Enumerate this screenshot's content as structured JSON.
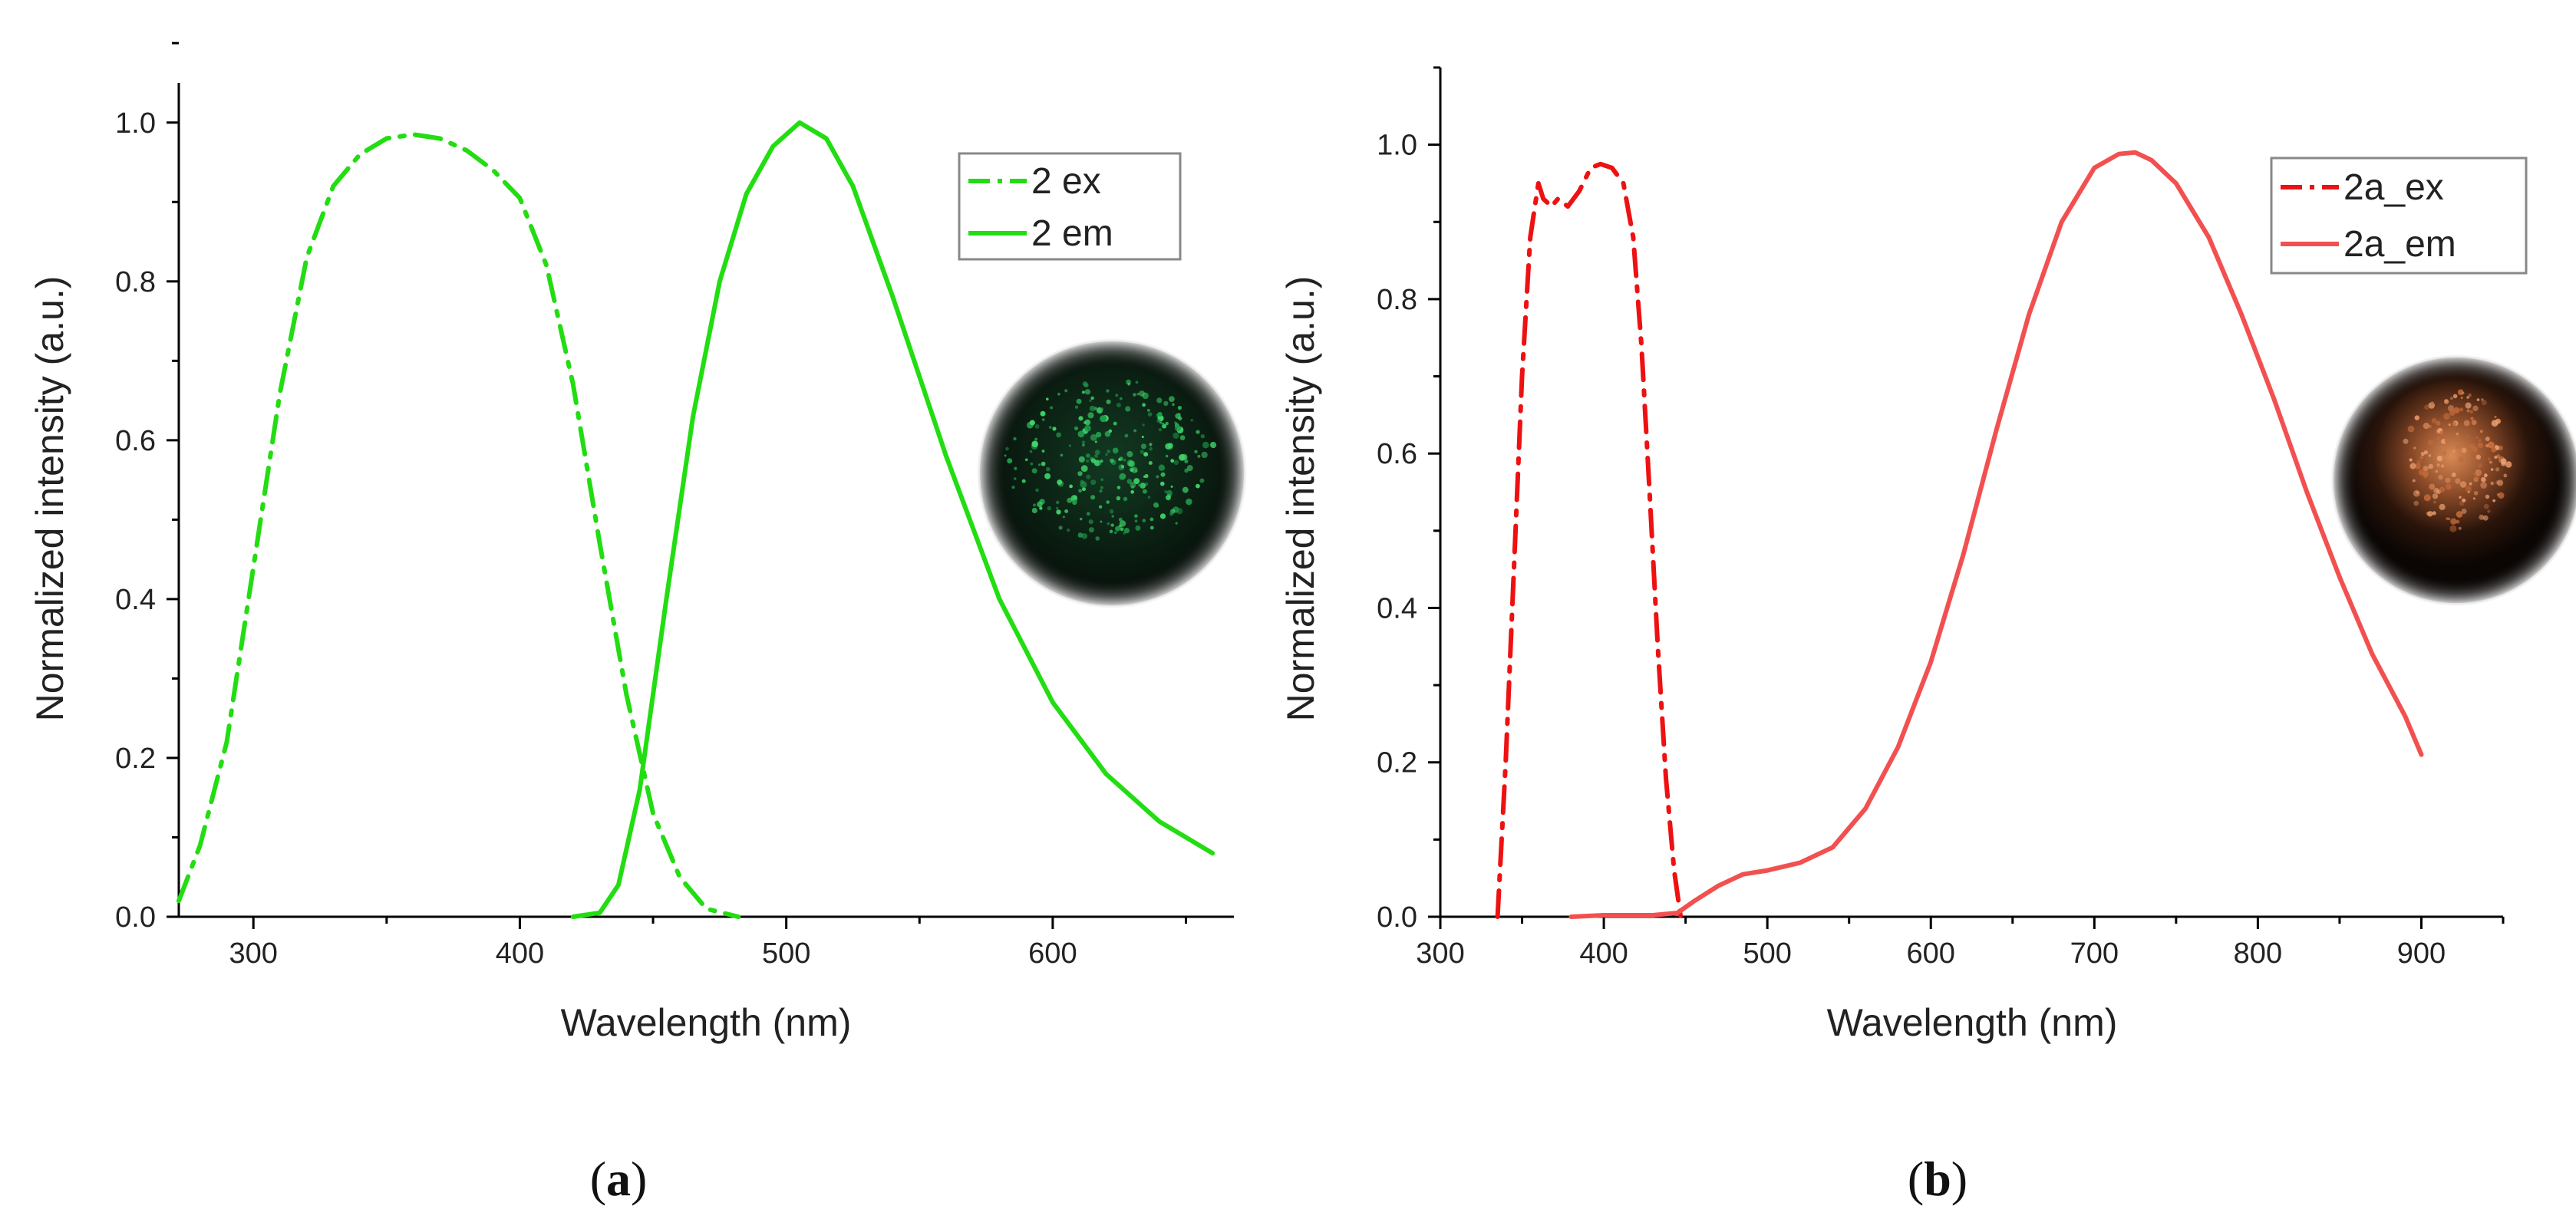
{
  "colors": {
    "green": "#22dd11",
    "red": "#ee1111",
    "red_em": "#f25050"
  },
  "chart_data": [
    {
      "panel": "a",
      "panel_label_open": "(",
      "panel_label_letter": "a",
      "panel_label_close": ")",
      "type": "line",
      "xlabel": "Wavelength (nm)",
      "ylabel": "Normalized intensity (a.u.)",
      "xlim": [
        272,
        668
      ],
      "ylim": [
        0,
        1.05
      ],
      "xticks": [
        300,
        400,
        500,
        600
      ],
      "yticks": [
        0.0,
        0.2,
        0.4,
        0.6,
        0.8,
        1.0
      ],
      "ytick_labels": [
        "0.0",
        "0.2",
        "0.4",
        "0.6",
        "0.8",
        "1.0"
      ],
      "inset_icon": "green-luminescent-sample-photo",
      "series": [
        {
          "name": "2 ex",
          "style": "dashdot",
          "color": "#22dd11",
          "x": [
            272,
            280,
            290,
            300,
            310,
            320,
            330,
            340,
            350,
            360,
            370,
            380,
            390,
            400,
            410,
            420,
            430,
            440,
            450,
            460,
            470,
            482
          ],
          "y": [
            0.02,
            0.09,
            0.22,
            0.44,
            0.66,
            0.83,
            0.92,
            0.96,
            0.98,
            0.985,
            0.98,
            0.965,
            0.94,
            0.905,
            0.82,
            0.67,
            0.47,
            0.28,
            0.13,
            0.05,
            0.01,
            0.0
          ]
        },
        {
          "name": "2 em",
          "style": "solid",
          "color": "#22dd11",
          "x": [
            420,
            430,
            437,
            445,
            455,
            465,
            475,
            485,
            495,
            505,
            515,
            525,
            540,
            560,
            580,
            600,
            620,
            640,
            660
          ],
          "y": [
            0.0,
            0.005,
            0.04,
            0.16,
            0.4,
            0.63,
            0.8,
            0.91,
            0.97,
            1.0,
            0.98,
            0.92,
            0.78,
            0.58,
            0.4,
            0.27,
            0.18,
            0.12,
            0.08
          ]
        }
      ]
    },
    {
      "panel": "b",
      "panel_label_open": "(",
      "panel_label_letter": "b",
      "panel_label_close": ")",
      "type": "line",
      "xlabel": "Wavelength (nm)",
      "ylabel": "Normalized intensity (a.u.)",
      "xlim": [
        300,
        950
      ],
      "ylim": [
        0,
        1.1
      ],
      "xticks": [
        300,
        400,
        500,
        600,
        700,
        800,
        900
      ],
      "yticks": [
        0.0,
        0.2,
        0.4,
        0.6,
        0.8,
        1.0
      ],
      "ytick_labels": [
        "0.0",
        "0.2",
        "0.4",
        "0.6",
        "0.8",
        "1.0"
      ],
      "inset_icon": "orange-luminescent-sample-photo",
      "series": [
        {
          "name": "2a_ex",
          "style": "dashdot",
          "color": "#ee1111",
          "x": [
            335,
            340,
            345,
            350,
            355,
            360,
            363,
            368,
            372,
            378,
            385,
            392,
            398,
            405,
            412,
            418,
            423,
            428,
            433,
            438,
            443,
            447
          ],
          "y": [
            0.0,
            0.2,
            0.45,
            0.7,
            0.88,
            0.95,
            0.93,
            0.92,
            0.93,
            0.92,
            0.94,
            0.97,
            0.975,
            0.97,
            0.95,
            0.88,
            0.74,
            0.55,
            0.35,
            0.18,
            0.06,
            0.0
          ]
        },
        {
          "name": "2a_em",
          "style": "solid",
          "color": "#f25050",
          "x": [
            380,
            400,
            430,
            445,
            455,
            470,
            485,
            500,
            520,
            540,
            560,
            580,
            600,
            620,
            640,
            660,
            680,
            700,
            715,
            725,
            735,
            750,
            770,
            790,
            810,
            830,
            850,
            870,
            890,
            900
          ],
          "y": [
            0.0,
            0.002,
            0.002,
            0.005,
            0.02,
            0.04,
            0.055,
            0.06,
            0.07,
            0.09,
            0.14,
            0.22,
            0.33,
            0.47,
            0.63,
            0.78,
            0.9,
            0.97,
            0.988,
            0.99,
            0.98,
            0.95,
            0.88,
            0.78,
            0.67,
            0.55,
            0.44,
            0.34,
            0.26,
            0.21
          ]
        }
      ]
    }
  ]
}
